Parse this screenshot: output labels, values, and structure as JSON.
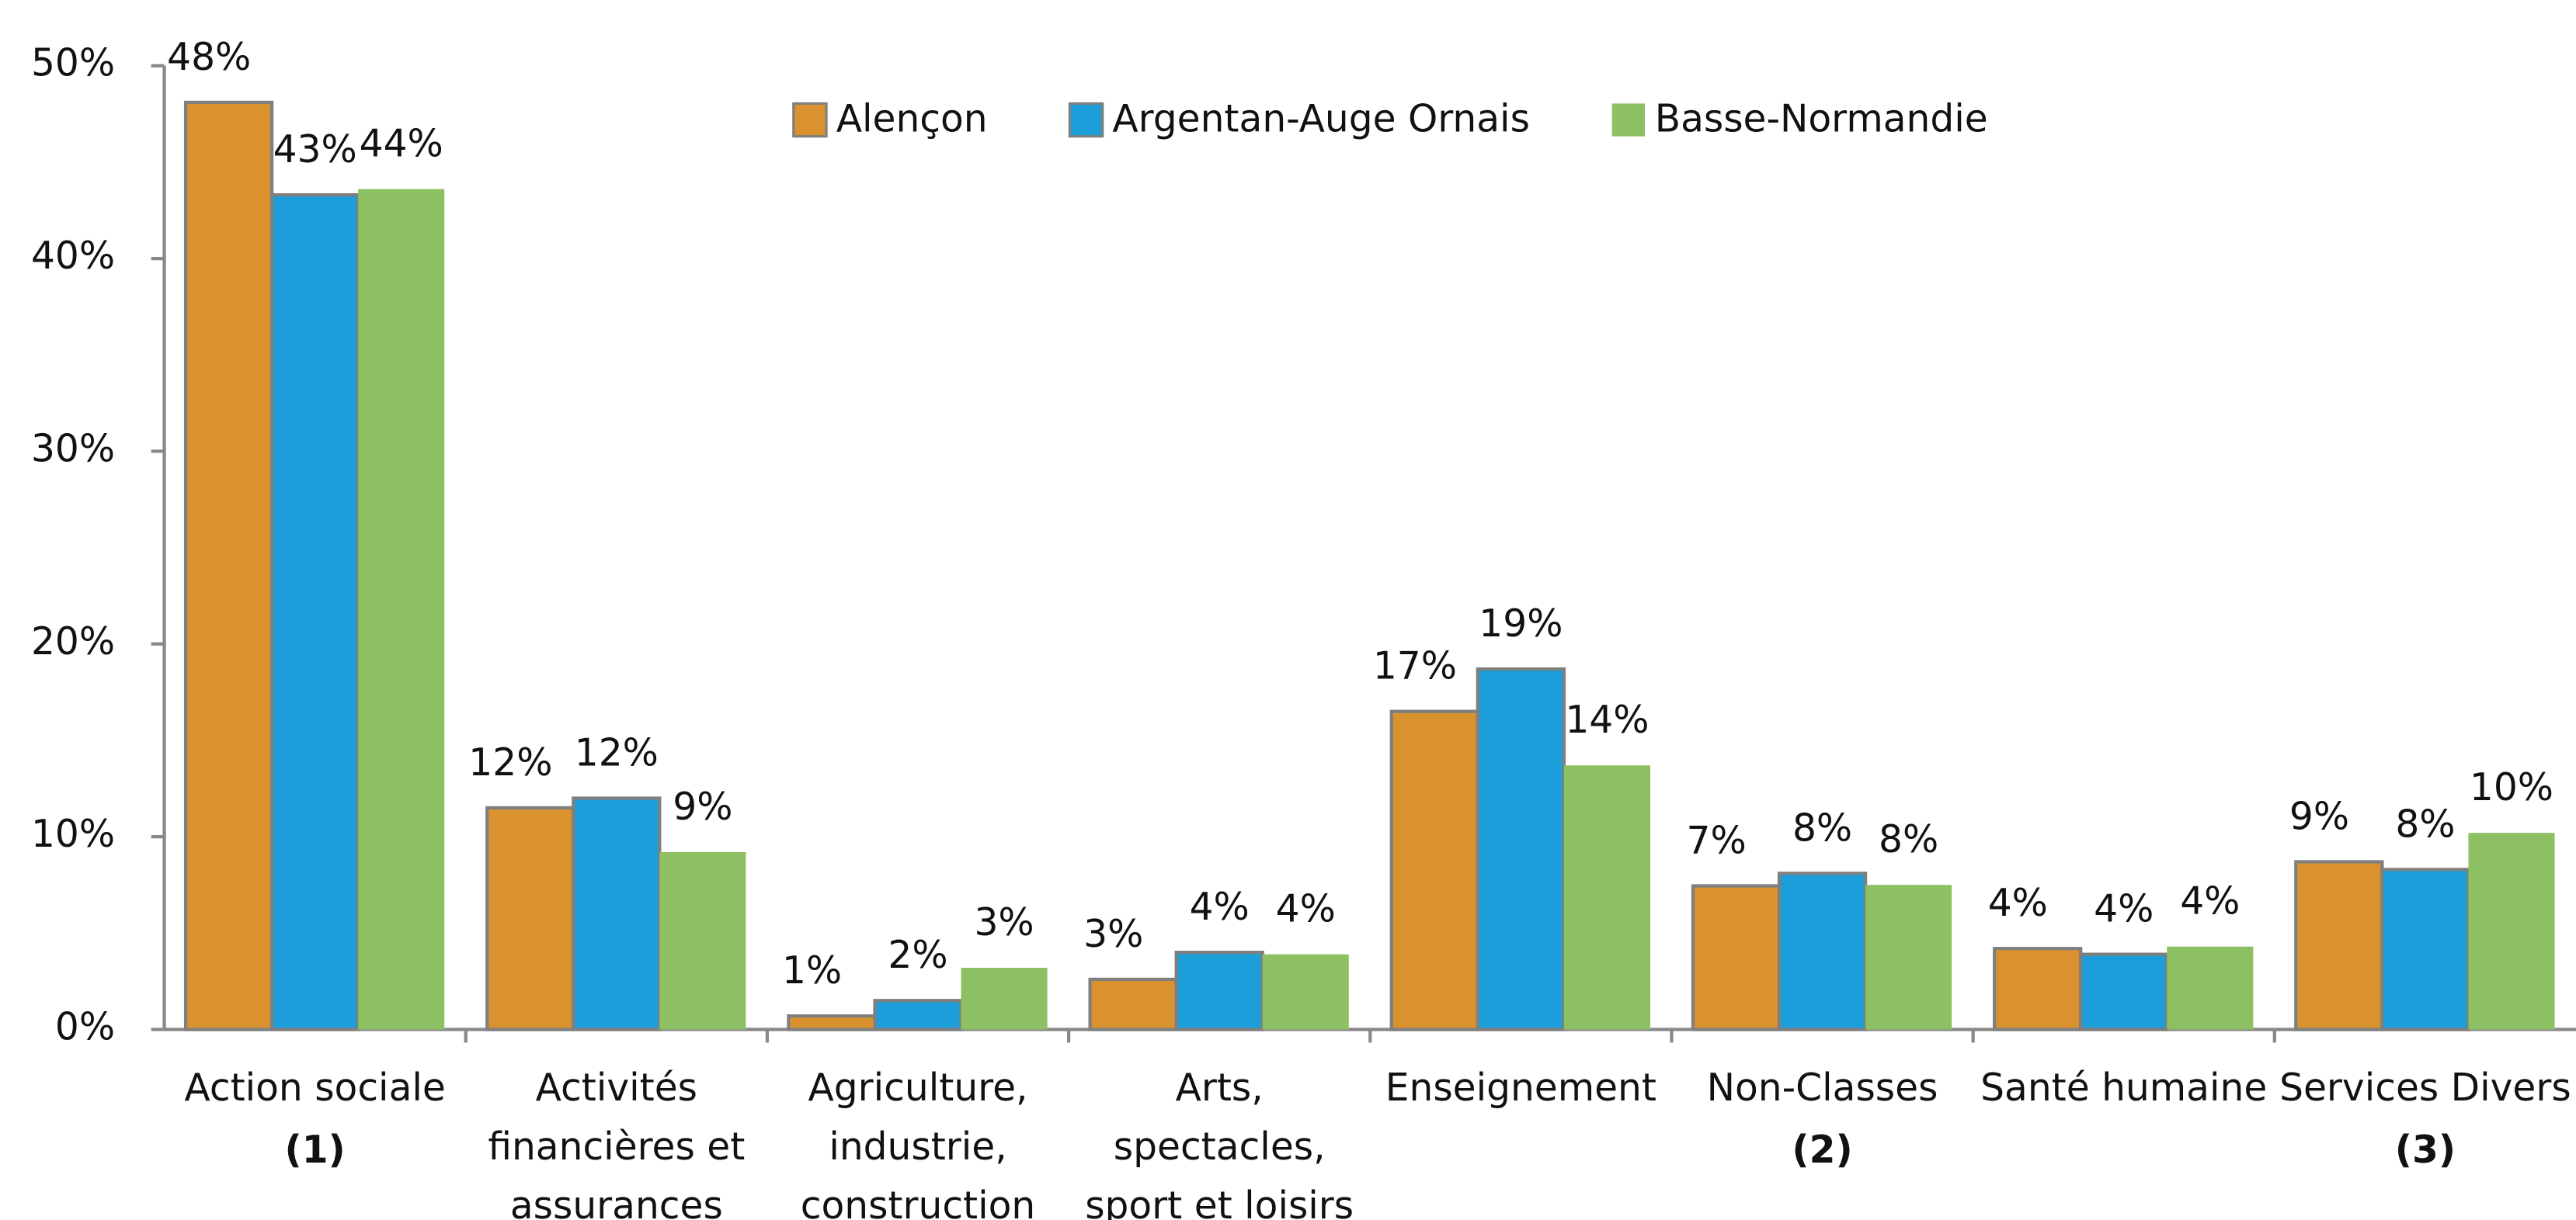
{
  "chart_data": {
    "type": "bar",
    "categories": [
      [
        "Action sociale"
      ],
      [
        "Activités",
        "financières et",
        "assurances"
      ],
      [
        "Agriculture,",
        "industrie,",
        "construction"
      ],
      [
        "Arts,",
        "spectacles,",
        "sport et loisirs"
      ],
      [
        "Enseignement"
      ],
      [
        "Non-Classes"
      ],
      [
        "Santé humaine"
      ],
      [
        "Services Divers"
      ]
    ],
    "category_notes": [
      "(1)",
      null,
      null,
      null,
      null,
      "(2)",
      null,
      "(3)"
    ],
    "series": [
      {
        "name": "Alençon",
        "color": "#d9922e",
        "values": [
          48.1,
          11.5,
          0.7,
          2.6,
          16.5,
          7.45,
          4.2,
          8.7
        ],
        "value_labels": [
          "48%",
          "12%",
          "1%",
          "3%",
          "17%",
          "7%",
          "4%",
          "9%"
        ]
      },
      {
        "name": "Argentan-Auge Ornais",
        "color": "#1b9ed9",
        "values": [
          43.3,
          12.0,
          1.5,
          4.0,
          18.7,
          8.1,
          3.9,
          8.3
        ],
        "value_labels": [
          "43%",
          "12%",
          "2%",
          "4%",
          "19%",
          "8%",
          "4%",
          "8%"
        ]
      },
      {
        "name": "Basse-Normandie",
        "color": "#8dc063",
        "values": [
          43.6,
          9.2,
          3.2,
          3.9,
          13.7,
          7.5,
          4.3,
          10.2
        ],
        "value_labels": [
          "44%",
          "9%",
          "3%",
          "4%",
          "14%",
          "8%",
          "4%",
          "10%"
        ]
      }
    ],
    "ylim": [
      0,
      50
    ],
    "yticks": [
      {
        "value": 0,
        "label": "0%"
      },
      {
        "value": 10,
        "label": "10%"
      },
      {
        "value": 20,
        "label": "20%"
      },
      {
        "value": 30,
        "label": "30%"
      },
      {
        "value": 40,
        "label": "40%"
      },
      {
        "value": 50,
        "label": "50%"
      }
    ],
    "legend": "top"
  }
}
